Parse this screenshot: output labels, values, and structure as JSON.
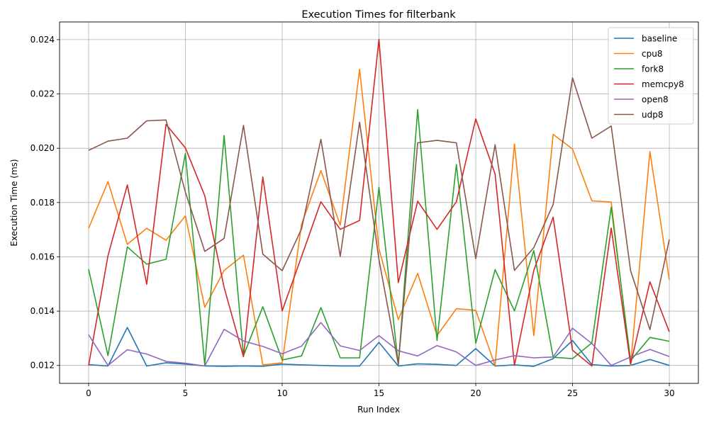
{
  "chart_data": {
    "type": "line",
    "title": "Execution Times for filterbank",
    "xlabel": "Run Index",
    "ylabel": "Execution Time (ms)",
    "xlim": [
      -1.5,
      31.5
    ],
    "ylim": [
      0.01134,
      0.02465
    ],
    "xticks": [
      0,
      5,
      10,
      15,
      20,
      25,
      30
    ],
    "yticks": [
      0.012,
      0.014,
      0.016,
      0.018,
      0.02,
      0.022,
      0.024
    ],
    "ytick_labels": [
      "0.012",
      "0.014",
      "0.016",
      "0.018",
      "0.020",
      "0.022",
      "0.024"
    ],
    "grid": true,
    "legend_position": "top-right",
    "x": [
      0,
      1,
      2,
      3,
      4,
      5,
      6,
      7,
      8,
      9,
      10,
      11,
      12,
      13,
      14,
      15,
      16,
      17,
      18,
      19,
      20,
      21,
      22,
      23,
      24,
      25,
      26,
      27,
      28,
      29,
      30
    ],
    "series": [
      {
        "name": "baseline",
        "color": "#1f77b4",
        "values": [
          0.01203,
          0.01198,
          0.0134,
          0.01198,
          0.0121,
          0.01205,
          0.01198,
          0.01197,
          0.01198,
          0.01197,
          0.01205,
          0.01202,
          0.012,
          0.01198,
          0.01198,
          0.01285,
          0.01198,
          0.01206,
          0.01204,
          0.012,
          0.01262,
          0.01198,
          0.01202,
          0.01197,
          0.01225,
          0.01292,
          0.01203,
          0.01198,
          0.012,
          0.01222,
          0.012
        ]
      },
      {
        "name": "cpu8",
        "color": "#ff7f0e",
        "values": [
          0.01705,
          0.01877,
          0.01646,
          0.01705,
          0.01661,
          0.01751,
          0.01414,
          0.0155,
          0.01606,
          0.01202,
          0.0121,
          0.0172,
          0.01918,
          0.01717,
          0.02291,
          0.0163,
          0.01369,
          0.01539,
          0.0131,
          0.01409,
          0.01403,
          0.012,
          0.02016,
          0.0131,
          0.02051,
          0.01997,
          0.01806,
          0.01802,
          0.012,
          0.01988,
          0.01516
        ]
      },
      {
        "name": "fork8",
        "color": "#2ca02c",
        "values": [
          0.01554,
          0.01236,
          0.01637,
          0.01573,
          0.01591,
          0.01981,
          0.01201,
          0.02047,
          0.01236,
          0.01416,
          0.0122,
          0.01235,
          0.01413,
          0.01228,
          0.01228,
          0.01856,
          0.01202,
          0.02142,
          0.01292,
          0.0194,
          0.01282,
          0.01553,
          0.01401,
          0.01623,
          0.0123,
          0.01225,
          0.01283,
          0.01783,
          0.01218,
          0.01303,
          0.01289
        ]
      },
      {
        "name": "memcpy8",
        "color": "#d62728",
        "values": [
          0.012,
          0.01604,
          0.01865,
          0.01499,
          0.02088,
          0.02001,
          0.01825,
          0.01487,
          0.01232,
          0.01894,
          0.01401,
          0.01601,
          0.01803,
          0.01701,
          0.01734,
          0.02401,
          0.01505,
          0.01805,
          0.01701,
          0.01803,
          0.02108,
          0.01905,
          0.012,
          0.0155,
          0.01746,
          0.01256,
          0.01198,
          0.01706,
          0.01205,
          0.01508,
          0.01324
        ]
      },
      {
        "name": "open8",
        "color": "#9467bd",
        "values": [
          0.01313,
          0.012,
          0.01258,
          0.01242,
          0.01215,
          0.01208,
          0.01198,
          0.01333,
          0.0129,
          0.0127,
          0.01243,
          0.01271,
          0.01358,
          0.01272,
          0.01255,
          0.0131,
          0.01254,
          0.01235,
          0.01273,
          0.0125,
          0.012,
          0.0122,
          0.01236,
          0.01228,
          0.01231,
          0.01337,
          0.01281,
          0.012,
          0.01231,
          0.01259,
          0.01233
        ]
      },
      {
        "name": "udp8",
        "color": "#8c564b",
        "values": [
          0.01992,
          0.02026,
          0.02037,
          0.02101,
          0.02104,
          0.01838,
          0.0162,
          0.01668,
          0.02084,
          0.0161,
          0.01549,
          0.01703,
          0.02033,
          0.01602,
          0.02096,
          0.0159,
          0.01205,
          0.0202,
          0.02029,
          0.0202,
          0.01593,
          0.02013,
          0.0155,
          0.01634,
          0.01793,
          0.02259,
          0.02037,
          0.02082,
          0.01549,
          0.01332,
          0.01664
        ]
      }
    ]
  }
}
